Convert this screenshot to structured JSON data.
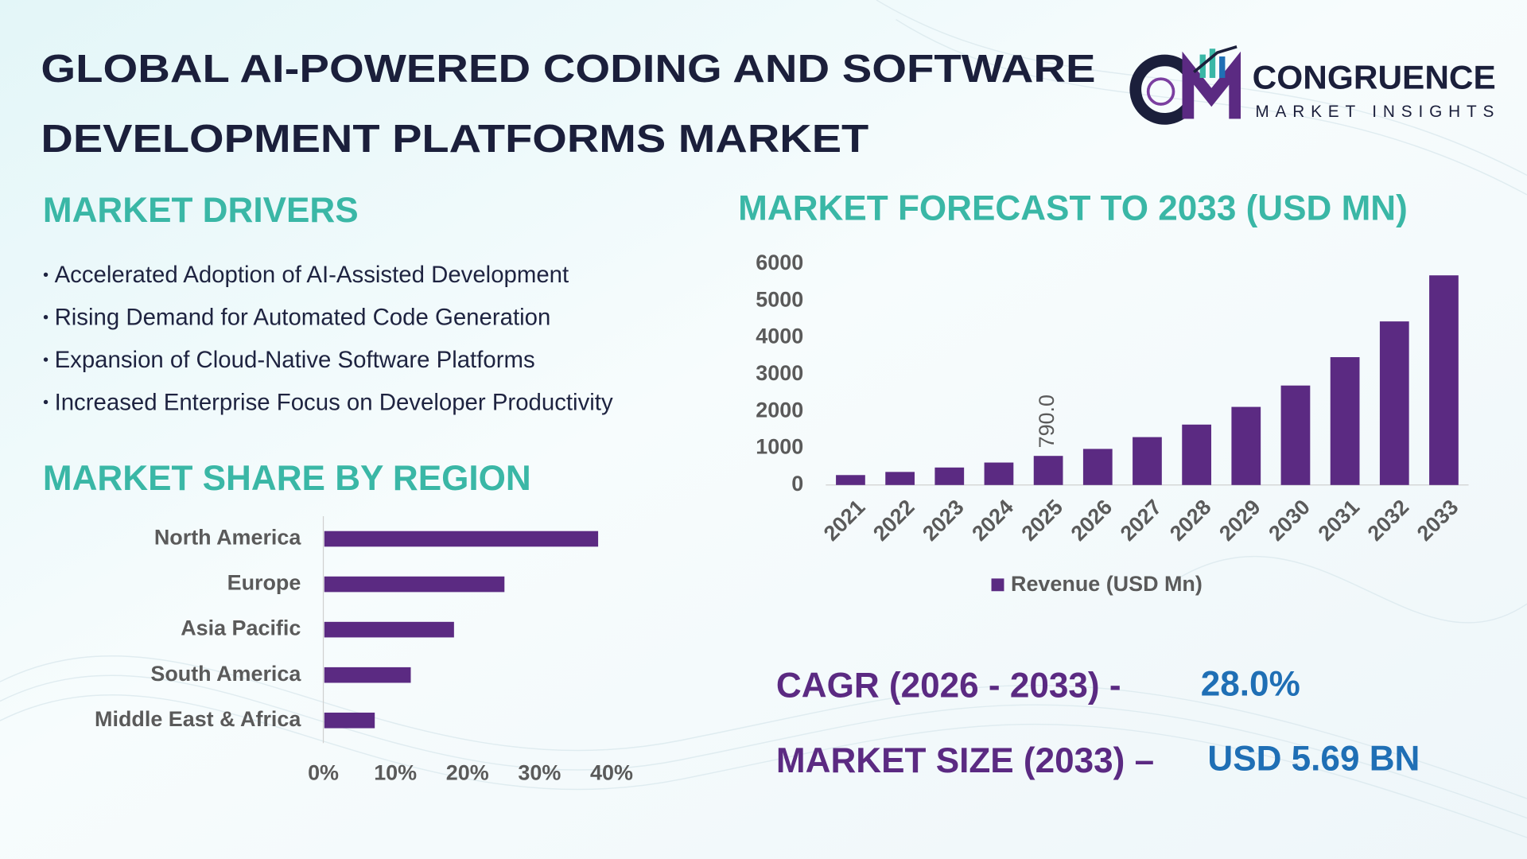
{
  "title": [
    "GLOBAL AI-POWERED CODING AND SOFTWARE",
    "DEVELOPMENT PLATFORMS MARKET"
  ],
  "brand": {
    "name": "CONGRUENCE",
    "tagline": "MARKET INSIGHTS"
  },
  "drivers": {
    "heading": "MARKET DRIVERS",
    "items": [
      "Accelerated Adoption of AI-Assisted Development",
      "Rising Demand for Automated Code Generation",
      "Expansion of Cloud-Native Software Platforms",
      "Increased Enterprise Focus on Developer Productivity"
    ]
  },
  "stats": [
    {
      "label": "CAGR (2026 - 2033) -",
      "value": "28.0%"
    },
    {
      "label": "MARKET SIZE (2033) –",
      "value": "USD 5.69 BN"
    }
  ],
  "chart_data": [
    {
      "type": "bar",
      "title": "MARKET FORECAST TO 2033 (USD MN)",
      "categories": [
        "2021",
        "2022",
        "2023",
        "2024",
        "2025",
        "2026",
        "2027",
        "2028",
        "2029",
        "2030",
        "2031",
        "2032",
        "2033"
      ],
      "series": [
        {
          "name": "Revenue (USD Mn)",
          "color": "#5b2a82",
          "values": [
            270,
            355,
            475,
            610,
            790,
            980,
            1300,
            1640,
            2120,
            2700,
            3470,
            4440,
            5690
          ],
          "value_labels": [
            null,
            null,
            null,
            null,
            "790.0",
            null,
            null,
            null,
            null,
            null,
            null,
            null,
            null
          ]
        }
      ],
      "ylim": [
        0,
        6000
      ],
      "yticks": [
        0,
        1000,
        2000,
        3000,
        4000,
        5000,
        6000
      ]
    },
    {
      "type": "barh",
      "title": "MARKET SHARE BY REGION",
      "categories": [
        "North America",
        "Europe",
        "Asia Pacific",
        "South America",
        "Middle East & Africa"
      ],
      "values": [
        38,
        25,
        18,
        12,
        7
      ],
      "color": "#5b2a82",
      "xlim": [
        0,
        40
      ],
      "xticks": [
        {
          "value": 0,
          "label": "0%"
        },
        {
          "value": 10,
          "label": "10%"
        },
        {
          "value": 20,
          "label": "20%"
        },
        {
          "value": 30,
          "label": "30%"
        },
        {
          "value": 40,
          "label": "40%"
        }
      ]
    }
  ]
}
